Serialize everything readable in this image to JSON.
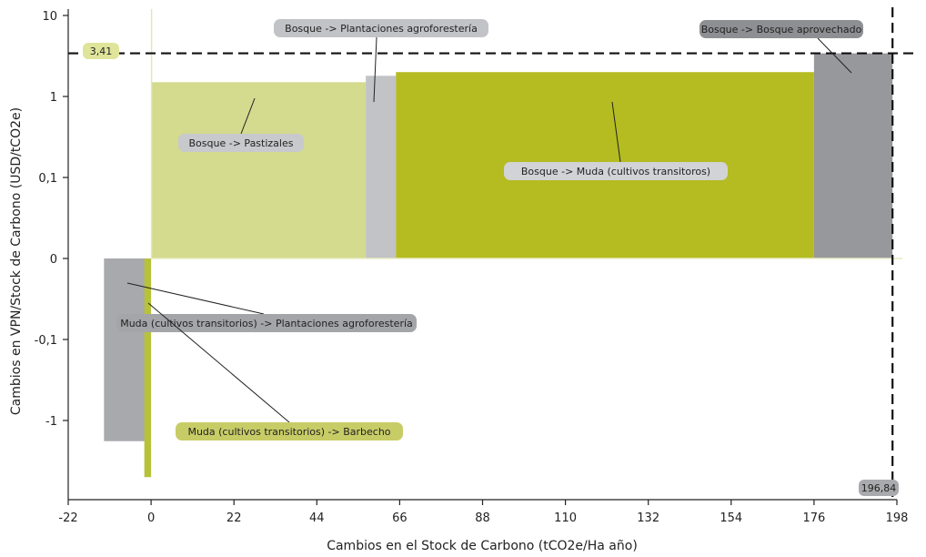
{
  "chart_data": {
    "type": "bar",
    "subtype": "variable-width step (marginal abatement cost style)",
    "xlabel": "Cambios en el Stock de Carbono (tCO2e/Ha año)",
    "ylabel": "Cambios en VPN/Stock de Carbono (USD/tCO2e)",
    "xlim": [
      -22,
      198
    ],
    "x_ticks": [
      "-22",
      "0",
      "22",
      "44",
      "66",
      "88",
      "110",
      "132",
      "154",
      "176",
      "198"
    ],
    "y_scale": "symmetric log",
    "y_ticks": [
      "10",
      "1",
      "0,1",
      "0",
      "-0,1",
      "-1"
    ],
    "grid": false,
    "series": [
      {
        "label": "Muda (cultivos transitorios) -> Plantaciones agroforestería",
        "x_start": -12.5,
        "x_end": -1.5,
        "value": -1.8,
        "color": "#a8a9ad"
      },
      {
        "label": "Muda (cultivos transitorios) -> Barbecho",
        "x_start": -1.8,
        "x_end": 0,
        "value": -5,
        "color": "#b6c23a"
      },
      {
        "label": "Bosque -> Pastizales",
        "x_start": 0,
        "x_end": 57,
        "value": 1.5,
        "color": "#d4da8e"
      },
      {
        "label": "Bosque -> Plantaciones agroforestería",
        "x_start": 57,
        "x_end": 65,
        "value": 1.8,
        "color": "#c2c3c6"
      },
      {
        "label": "Bosque -> Muda (cultivos transitoros)",
        "x_start": 65,
        "x_end": 176,
        "value": 2.0,
        "color": "#b4bc22"
      },
      {
        "label": "Bosque -> Bosque aprovechado",
        "x_start": 176,
        "x_end": 196.84,
        "value": 3.41,
        "color": "#97989b"
      }
    ],
    "reference_lines": {
      "horizontal": {
        "value": 3.41,
        "label": "3,41"
      },
      "vertical": {
        "value": 196.84,
        "label": "196,84"
      }
    }
  },
  "annotations": [
    {
      "text": "Bosque -> Plantaciones agroforestería",
      "color": "#c2c3c6",
      "text_color": "#222222"
    },
    {
      "text": "Bosque -> Bosque aprovechado",
      "color": "#8e8f92",
      "text_color": "#ffffff"
    },
    {
      "text": "Bosque -> Pastizales",
      "color": "#c8c9cc",
      "text_color": "#222222"
    },
    {
      "text": "Bosque -> Muda (cultivos transitoros)",
      "color": "#d2d3d6",
      "text_color": "#222222"
    },
    {
      "text": "Muda (cultivos transitorios) -> Plantaciones agroforestería",
      "color": "#a4a5a8",
      "text_color": "#ffffff"
    },
    {
      "text": "Muda (cultivos transitorios) -> Barbecho",
      "color": "#c8cc66",
      "text_color": "#222222"
    }
  ],
  "colors": {
    "axis": "#222222",
    "zero_line": "#e8ebc4",
    "y_axis_light": "#e3e7b8",
    "ref_line": "#111111",
    "label_341_bg": "#dfe49a",
    "label_19684_bg": "#a9aaad"
  }
}
